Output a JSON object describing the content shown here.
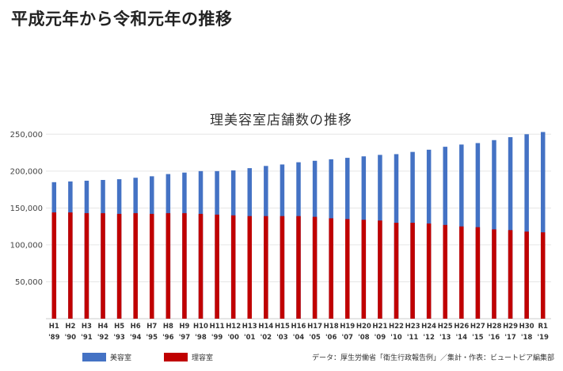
{
  "page": {
    "title": "平成元年から令和元年の推移"
  },
  "chart_data": {
    "type": "bar",
    "title": "理美容室店舗数の推移",
    "xlabel": "",
    "ylabel": "",
    "ylim": [
      0,
      260000
    ],
    "yticks": [
      50000,
      100000,
      150000,
      200000,
      250000
    ],
    "ytick_labels": [
      "50,000",
      "100,000",
      "150,000",
      "200,000",
      "250,000"
    ],
    "grid": true,
    "legend_position": "bottom-left",
    "categories": [
      "H1",
      "H2",
      "H3",
      "H4",
      "H5",
      "H6",
      "H7",
      "H8",
      "H9",
      "H10",
      "H11",
      "H12",
      "H13",
      "H14",
      "H15",
      "H16",
      "H17",
      "H18",
      "H19",
      "H20",
      "H21",
      "H22",
      "H23",
      "H24",
      "H25",
      "H26",
      "H27",
      "H28",
      "H29",
      "H30",
      "R1"
    ],
    "category_years": [
      "'89",
      "'90",
      "'91",
      "'92",
      "'93",
      "'94",
      "'95",
      "'96",
      "'97",
      "'98",
      "'99",
      "'00",
      "'01",
      "'02",
      "'03",
      "'04",
      "'05",
      "'06",
      "'07",
      "'08",
      "'09",
      "'10",
      "'11",
      "'12",
      "'13",
      "'14",
      "'15",
      "'16",
      "'17",
      "'18",
      "'19"
    ],
    "series": [
      {
        "name": "美容室",
        "color": "#4472c4",
        "values": [
          185000,
          186000,
          187000,
          188000,
          189000,
          191000,
          193000,
          196000,
          198000,
          200000,
          200000,
          201000,
          204000,
          207000,
          209000,
          212000,
          214000,
          216000,
          218000,
          220000,
          222000,
          223000,
          226000,
          229000,
          233000,
          236000,
          238000,
          242000,
          246000,
          250000,
          253000
        ]
      },
      {
        "name": "理容室",
        "color": "#c00000",
        "values": [
          144000,
          144000,
          143000,
          143000,
          142000,
          143000,
          142000,
          143000,
          143000,
          142000,
          141000,
          140000,
          139000,
          139000,
          139000,
          139000,
          138000,
          136000,
          135000,
          134000,
          133000,
          130000,
          130000,
          129000,
          127000,
          125000,
          124000,
          121000,
          120000,
          118000,
          117000
        ]
      }
    ],
    "source": "データ：厚生労働省「衛生行政報告例」／集計・作表：ビュートピア編集部"
  }
}
